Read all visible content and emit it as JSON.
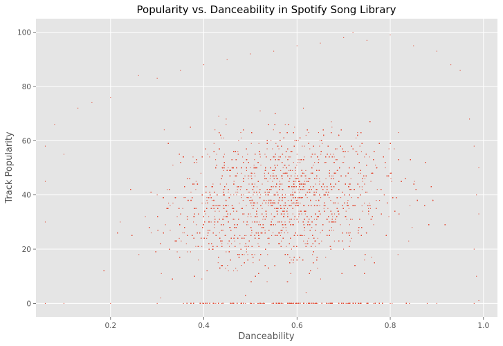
{
  "chart_data": {
    "type": "scatter",
    "title": "Popularity vs. Danceability in Spotify Song Library",
    "xlabel": "Danceability",
    "ylabel": "Track Popularity",
    "xlim": [
      0.04,
      1.03
    ],
    "ylim": [
      -5,
      105
    ],
    "xticks": [
      "0.2",
      "0.4",
      "0.6",
      "0.8",
      "1.0"
    ],
    "yticks": [
      "0",
      "20",
      "40",
      "60",
      "80",
      "100"
    ],
    "grid": true,
    "style": "ggplot",
    "background_color": "#e5e5e5",
    "grid_color": "#ffffff",
    "marker_color": "#e24a33",
    "x_range_observed": [
      0.06,
      0.99
    ],
    "y_range_observed": [
      0,
      100
    ],
    "series": [
      {
        "points": [
          [
            0.06,
            0
          ],
          [
            0.1,
            0
          ],
          [
            0.2,
            0
          ],
          [
            0.3,
            0
          ],
          [
            0.4,
            0
          ],
          [
            0.5,
            0
          ],
          [
            0.6,
            0
          ],
          [
            0.7,
            0
          ],
          [
            0.8,
            0
          ],
          [
            0.9,
            0
          ],
          [
            0.98,
            0
          ],
          [
            0.06,
            30
          ],
          [
            0.06,
            45
          ],
          [
            0.06,
            58
          ],
          [
            0.08,
            66
          ],
          [
            0.1,
            55
          ],
          [
            0.13,
            72
          ],
          [
            0.16,
            74
          ],
          [
            0.2,
            76
          ],
          [
            0.26,
            84
          ],
          [
            0.3,
            83
          ],
          [
            0.35,
            86
          ],
          [
            0.4,
            88
          ],
          [
            0.45,
            90
          ],
          [
            0.5,
            92
          ],
          [
            0.55,
            93
          ],
          [
            0.6,
            95
          ],
          [
            0.65,
            96
          ],
          [
            0.7,
            98
          ],
          [
            0.72,
            100
          ],
          [
            0.75,
            97
          ],
          [
            0.8,
            99
          ],
          [
            0.85,
            95
          ],
          [
            0.9,
            93
          ],
          [
            0.93,
            88
          ],
          [
            0.95,
            86
          ],
          [
            0.97,
            68
          ],
          [
            0.98,
            58
          ],
          [
            0.99,
            50
          ],
          [
            0.985,
            40
          ],
          [
            0.99,
            33
          ],
          [
            0.98,
            20
          ],
          [
            0.985,
            10
          ],
          [
            0.99,
            1
          ],
          [
            0.3,
            40
          ],
          [
            0.5,
            50
          ],
          [
            0.6,
            55
          ],
          [
            0.7,
            52
          ],
          [
            0.8,
            48
          ]
        ]
      }
    ]
  }
}
